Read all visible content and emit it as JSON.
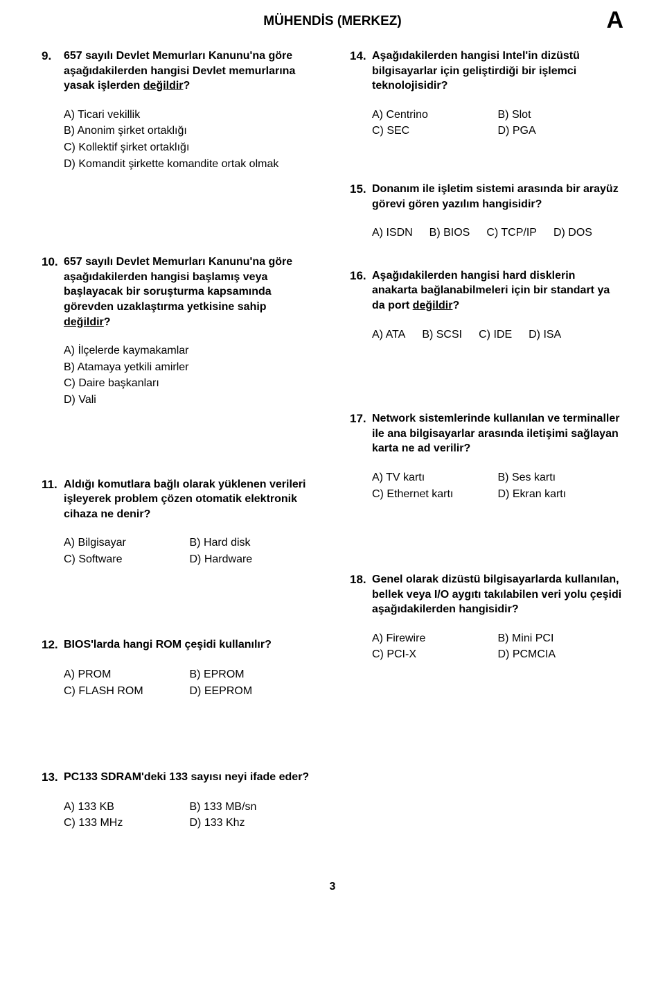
{
  "header": {
    "title": "MÜHENDİS (MERKEZ)",
    "letter": "A"
  },
  "page_number": "3",
  "questions": {
    "q9": {
      "num": "9.",
      "text_pre": "657 sayılı Devlet Memurları Kanunu'na göre aşağıdakilerden hangisi Devlet memurlarına yasak işlerden ",
      "text_underline": "değildir",
      "text_post": "?",
      "opts": {
        "a": "A) Ticari vekillik",
        "b": "B) Anonim şirket ortaklığı",
        "c": "C) Kollektif şirket ortaklığı",
        "d": "D) Komandit şirkette komandite ortak olmak"
      }
    },
    "q10": {
      "num": "10.",
      "text_pre": "657 sayılı Devlet Memurları Kanunu'na göre aşağıdakilerden hangisi başlamış veya başlayacak bir soruşturma kapsamında görevden uzaklaştırma yetkisine sahip ",
      "text_underline": "değildir",
      "text_post": "?",
      "opts": {
        "a": "A) İlçelerde kaymakamlar",
        "b": "B) Atamaya yetkili amirler",
        "c": "C) Daire başkanları",
        "d": "D) Vali"
      }
    },
    "q11": {
      "num": "11.",
      "text": "Aldığı komutlara bağlı olarak yüklenen verileri işleyerek problem çözen otomatik elektronik cihaza ne denir?",
      "opts": {
        "a": "A) Bilgisayar",
        "b": "B) Hard disk",
        "c": "C) Software",
        "d": "D) Hardware"
      }
    },
    "q12": {
      "num": "12.",
      "text": "BIOS'larda hangi ROM çeşidi kullanılır?",
      "opts": {
        "a": "A) PROM",
        "b": "B) EPROM",
        "c": "C) FLASH ROM",
        "d": "D) EEPROM"
      }
    },
    "q13": {
      "num": "13.",
      "text": "PC133 SDRAM'deki 133 sayısı neyi ifade eder?",
      "opts": {
        "a": "A) 133 KB",
        "b": "B) 133 MB/sn",
        "c": "C) 133 MHz",
        "d": "D) 133 Khz"
      }
    },
    "q14": {
      "num": "14.",
      "text": "Aşağıdakilerden hangisi Intel'in dizüstü bilgisayarlar için geliştirdiği bir işlemci teknolojisidir?",
      "opts": {
        "a": "A) Centrino",
        "b": "B) Slot",
        "c": "C) SEC",
        "d": "D) PGA"
      }
    },
    "q15": {
      "num": "15.",
      "text": "Donanım ile işletim sistemi arasında bir arayüz görevi gören yazılım hangisidir?",
      "opts": {
        "a": "A) ISDN",
        "b": "B) BIOS",
        "c": "C) TCP/IP",
        "d": "D) DOS"
      }
    },
    "q16": {
      "num": "16.",
      "text_pre": "Aşağıdakilerden hangisi hard disklerin anakarta bağlanabilmeleri için bir standart ya da port ",
      "text_underline": "değildir",
      "text_post": "?",
      "opts": {
        "a": "A) ATA",
        "b": "B) SCSI",
        "c": "C) IDE",
        "d": "D) ISA"
      }
    },
    "q17": {
      "num": "17.",
      "text": "Network sistemlerinde kullanılan ve terminaller ile ana bilgisayarlar arasında iletişimi sağlayan karta ne ad verilir?",
      "opts": {
        "a": "A) TV kartı",
        "b": "B) Ses kartı",
        "c": "C) Ethernet kartı",
        "d": "D) Ekran kartı"
      }
    },
    "q18": {
      "num": "18.",
      "text": "Genel olarak dizüstü bilgisayarlarda kullanılan, bellek veya I/O aygıtı takılabilen veri yolu çeşidi aşağıdakilerden hangisidir?",
      "opts": {
        "a": "A) Firewire",
        "b": "B) Mini PCI",
        "c": "C) PCI-X",
        "d": "D) PCMCIA"
      }
    }
  }
}
